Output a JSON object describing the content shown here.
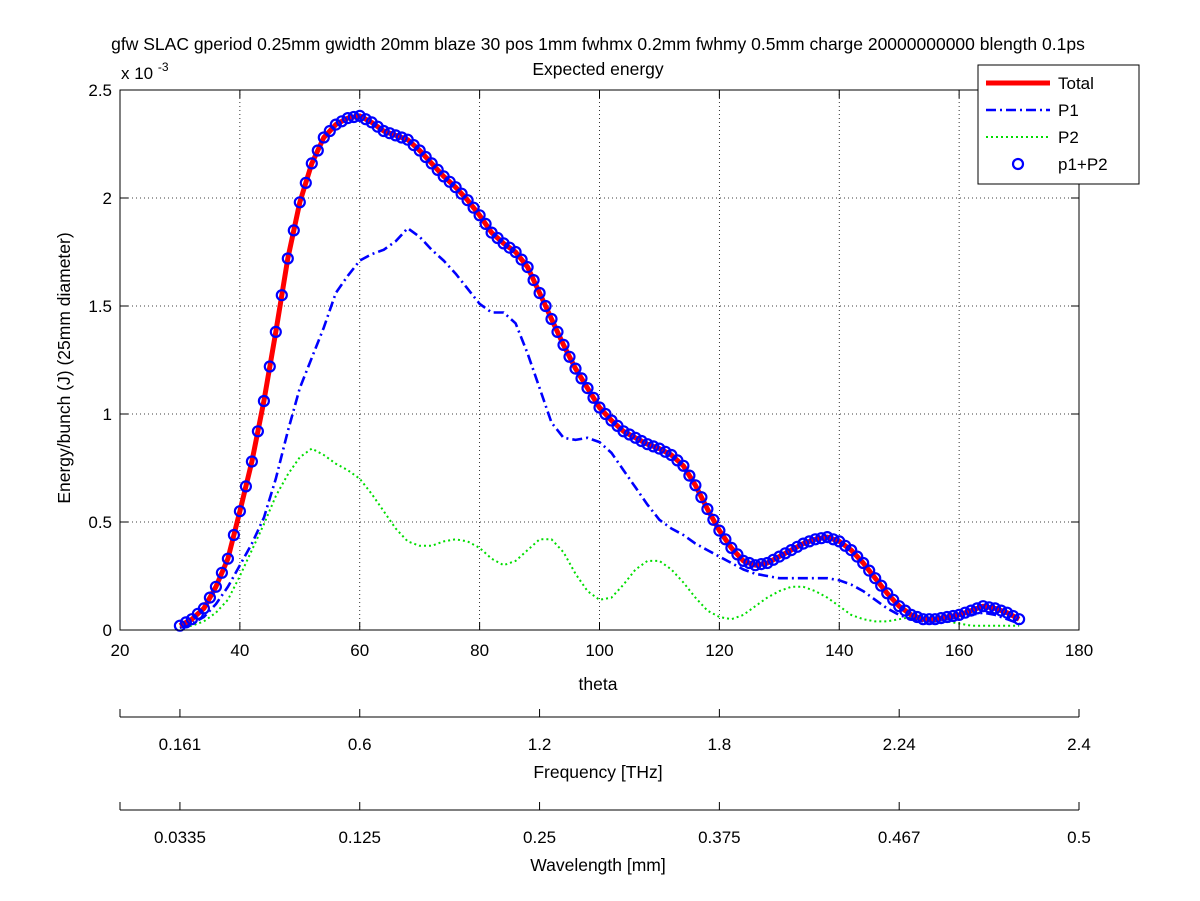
{
  "chart_data": {
    "type": "line",
    "title": "gfw SLAC gperiod 0.25mm gwidth 20mm blaze 30 pos 1mm fwhmx 0.2mm fwhmy 0.5mm charge 20000000000 blength 0.1ps",
    "subtitle": "Expected energy",
    "xlabel": "theta",
    "ylabel": "Energy/bunch (J) (25mm diameter)",
    "y_exponent_label": "x 10",
    "y_exponent_power": "-3",
    "xlim": [
      20,
      180
    ],
    "ylim": [
      0,
      2.5
    ],
    "x_ticks": [
      "20",
      "40",
      "60",
      "80",
      "100",
      "120",
      "140",
      "160",
      "180"
    ],
    "y_ticks": [
      "0",
      "0.5",
      "1",
      "1.5",
      "2",
      "2.5"
    ],
    "grid": true,
    "legend_position": "top-right",
    "legend": [
      "Total",
      "P1",
      "P2",
      "p1+P2"
    ],
    "secondary_axes": [
      {
        "label": "Frequency [THz]",
        "ticks": [
          {
            "theta": 30,
            "label": "0.161"
          },
          {
            "theta": 60,
            "label": "0.6"
          },
          {
            "theta": 90,
            "label": "1.2"
          },
          {
            "theta": 120,
            "label": "1.8"
          },
          {
            "theta": 150,
            "label": "2.24"
          },
          {
            "theta": 180,
            "label": "2.4"
          }
        ]
      },
      {
        "label": "Wavelength [mm]",
        "ticks": [
          {
            "theta": 30,
            "label": "0.0335"
          },
          {
            "theta": 60,
            "label": "0.125"
          },
          {
            "theta": 90,
            "label": "0.25"
          },
          {
            "theta": 120,
            "label": "0.375"
          },
          {
            "theta": 150,
            "label": "0.467"
          },
          {
            "theta": 180,
            "label": "0.5"
          }
        ]
      }
    ],
    "series": [
      {
        "name": "Total",
        "color": "#ff0000",
        "style": "solid",
        "x": [
          30,
          32,
          34,
          36,
          38,
          40,
          42,
          44,
          46,
          48,
          50,
          52,
          54,
          56,
          58,
          60,
          62,
          64,
          66,
          68,
          70,
          72,
          74,
          76,
          78,
          80,
          82,
          84,
          86,
          88,
          90,
          92,
          94,
          96,
          98,
          100,
          102,
          104,
          106,
          108,
          110,
          112,
          114,
          116,
          118,
          120,
          122,
          124,
          126,
          128,
          130,
          132,
          134,
          136,
          138,
          140,
          142,
          144,
          146,
          148,
          150,
          152,
          154,
          156,
          158,
          160,
          162,
          164,
          166,
          168,
          170
        ],
        "y": [
          0.02,
          0.05,
          0.1,
          0.2,
          0.33,
          0.55,
          0.78,
          1.06,
          1.38,
          1.72,
          1.98,
          2.16,
          2.28,
          2.34,
          2.37,
          2.38,
          2.35,
          2.31,
          2.29,
          2.27,
          2.22,
          2.16,
          2.1,
          2.05,
          1.99,
          1.92,
          1.84,
          1.79,
          1.75,
          1.68,
          1.56,
          1.44,
          1.32,
          1.21,
          1.12,
          1.03,
          0.97,
          0.92,
          0.89,
          0.86,
          0.84,
          0.81,
          0.76,
          0.67,
          0.56,
          0.46,
          0.38,
          0.32,
          0.3,
          0.31,
          0.34,
          0.37,
          0.4,
          0.42,
          0.43,
          0.41,
          0.37,
          0.31,
          0.24,
          0.17,
          0.11,
          0.07,
          0.05,
          0.05,
          0.06,
          0.07,
          0.09,
          0.11,
          0.1,
          0.08,
          0.05
        ]
      },
      {
        "name": "P1",
        "color": "#0000ff",
        "style": "dashdot",
        "x": [
          30,
          32,
          34,
          36,
          38,
          40,
          42,
          44,
          46,
          48,
          50,
          52,
          54,
          56,
          58,
          60,
          62,
          64,
          66,
          68,
          70,
          72,
          74,
          76,
          78,
          80,
          82,
          84,
          86,
          88,
          90,
          92,
          94,
          96,
          98,
          100,
          102,
          104,
          106,
          108,
          110,
          112,
          114,
          116,
          118,
          120,
          122,
          124,
          126,
          128,
          130,
          132,
          134,
          136,
          138,
          140,
          142,
          144,
          146,
          148,
          150,
          152,
          154,
          156,
          158,
          160,
          162,
          164,
          166,
          168,
          170
        ],
        "y": [
          0.01,
          0.03,
          0.06,
          0.12,
          0.2,
          0.3,
          0.4,
          0.52,
          0.7,
          0.92,
          1.12,
          1.26,
          1.4,
          1.56,
          1.64,
          1.71,
          1.74,
          1.76,
          1.8,
          1.86,
          1.82,
          1.76,
          1.71,
          1.65,
          1.58,
          1.51,
          1.47,
          1.47,
          1.42,
          1.28,
          1.12,
          0.96,
          0.89,
          0.88,
          0.89,
          0.87,
          0.82,
          0.74,
          0.66,
          0.58,
          0.51,
          0.47,
          0.44,
          0.4,
          0.37,
          0.34,
          0.31,
          0.28,
          0.26,
          0.25,
          0.24,
          0.24,
          0.24,
          0.24,
          0.24,
          0.23,
          0.21,
          0.18,
          0.14,
          0.1,
          0.07,
          0.05,
          0.04,
          0.04,
          0.05,
          0.06,
          0.07,
          0.08,
          0.07,
          0.05,
          0.03
        ]
      },
      {
        "name": "P2",
        "color": "#00dd00",
        "style": "dotted",
        "x": [
          30,
          32,
          34,
          36,
          38,
          40,
          42,
          44,
          46,
          48,
          50,
          52,
          54,
          56,
          58,
          60,
          62,
          64,
          66,
          68,
          70,
          72,
          74,
          76,
          78,
          80,
          82,
          84,
          86,
          88,
          90,
          92,
          94,
          96,
          98,
          100,
          102,
          104,
          106,
          108,
          110,
          112,
          114,
          116,
          118,
          120,
          122,
          124,
          126,
          128,
          130,
          132,
          134,
          136,
          138,
          140,
          142,
          144,
          146,
          148,
          150,
          152,
          154,
          156,
          158,
          160,
          162,
          164,
          166,
          168,
          170
        ],
        "y": [
          0.01,
          0.02,
          0.04,
          0.08,
          0.14,
          0.25,
          0.37,
          0.49,
          0.62,
          0.72,
          0.8,
          0.84,
          0.81,
          0.77,
          0.74,
          0.7,
          0.63,
          0.55,
          0.47,
          0.41,
          0.39,
          0.39,
          0.41,
          0.42,
          0.41,
          0.38,
          0.33,
          0.3,
          0.32,
          0.37,
          0.42,
          0.42,
          0.36,
          0.26,
          0.18,
          0.14,
          0.15,
          0.21,
          0.28,
          0.32,
          0.32,
          0.28,
          0.22,
          0.15,
          0.09,
          0.06,
          0.05,
          0.07,
          0.11,
          0.15,
          0.18,
          0.2,
          0.2,
          0.18,
          0.15,
          0.11,
          0.07,
          0.05,
          0.04,
          0.04,
          0.05,
          0.06,
          0.06,
          0.05,
          0.04,
          0.03,
          0.02,
          0.02,
          0.02,
          0.02,
          0.02
        ]
      },
      {
        "name": "p1+P2",
        "color": "#0000ff",
        "style": "circles",
        "x_from": 30,
        "x_to": 170,
        "x_step": 1,
        "y_from_series": "Total"
      }
    ]
  }
}
